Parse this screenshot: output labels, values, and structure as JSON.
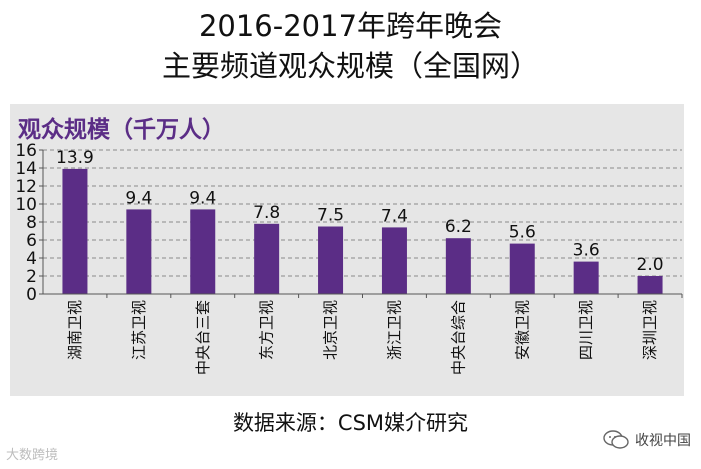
{
  "title_line1": "2016-2017年跨年晚会",
  "title_line2": "主要频道观众规模（全国网）",
  "source": "数据来源：CSM媒介研究",
  "watermark_left": "大数跨境",
  "watermark_right": "收视中国",
  "colors": {
    "bar": "#5b2d86",
    "panel": "#e6e6e6",
    "label": "#5b2d86"
  },
  "chart_data": {
    "type": "bar",
    "title": "2016-2017年跨年晚会 主要频道观众规模（全国网）",
    "ylabel": "观众规模（千万人）",
    "xlabel": "",
    "categories": [
      "湖南卫视",
      "江苏卫视",
      "中央台三套",
      "东方卫视",
      "北京卫视",
      "浙江卫视",
      "中央台综合",
      "安徽卫视",
      "四川卫视",
      "深圳卫视"
    ],
    "values": [
      13.9,
      9.4,
      9.4,
      7.8,
      7.5,
      7.4,
      6.2,
      5.6,
      3.6,
      2.0
    ],
    "value_labels": [
      "13.9",
      "9.4",
      "9.4",
      "7.8",
      "7.5",
      "7.4",
      "6.2",
      "5.6",
      "3.6",
      "2.0"
    ],
    "yticks": [
      "0",
      "2",
      "4",
      "6",
      "8",
      "10",
      "12",
      "14",
      "16"
    ],
    "ylim": [
      0,
      16
    ],
    "grid": true,
    "legend": "none"
  }
}
